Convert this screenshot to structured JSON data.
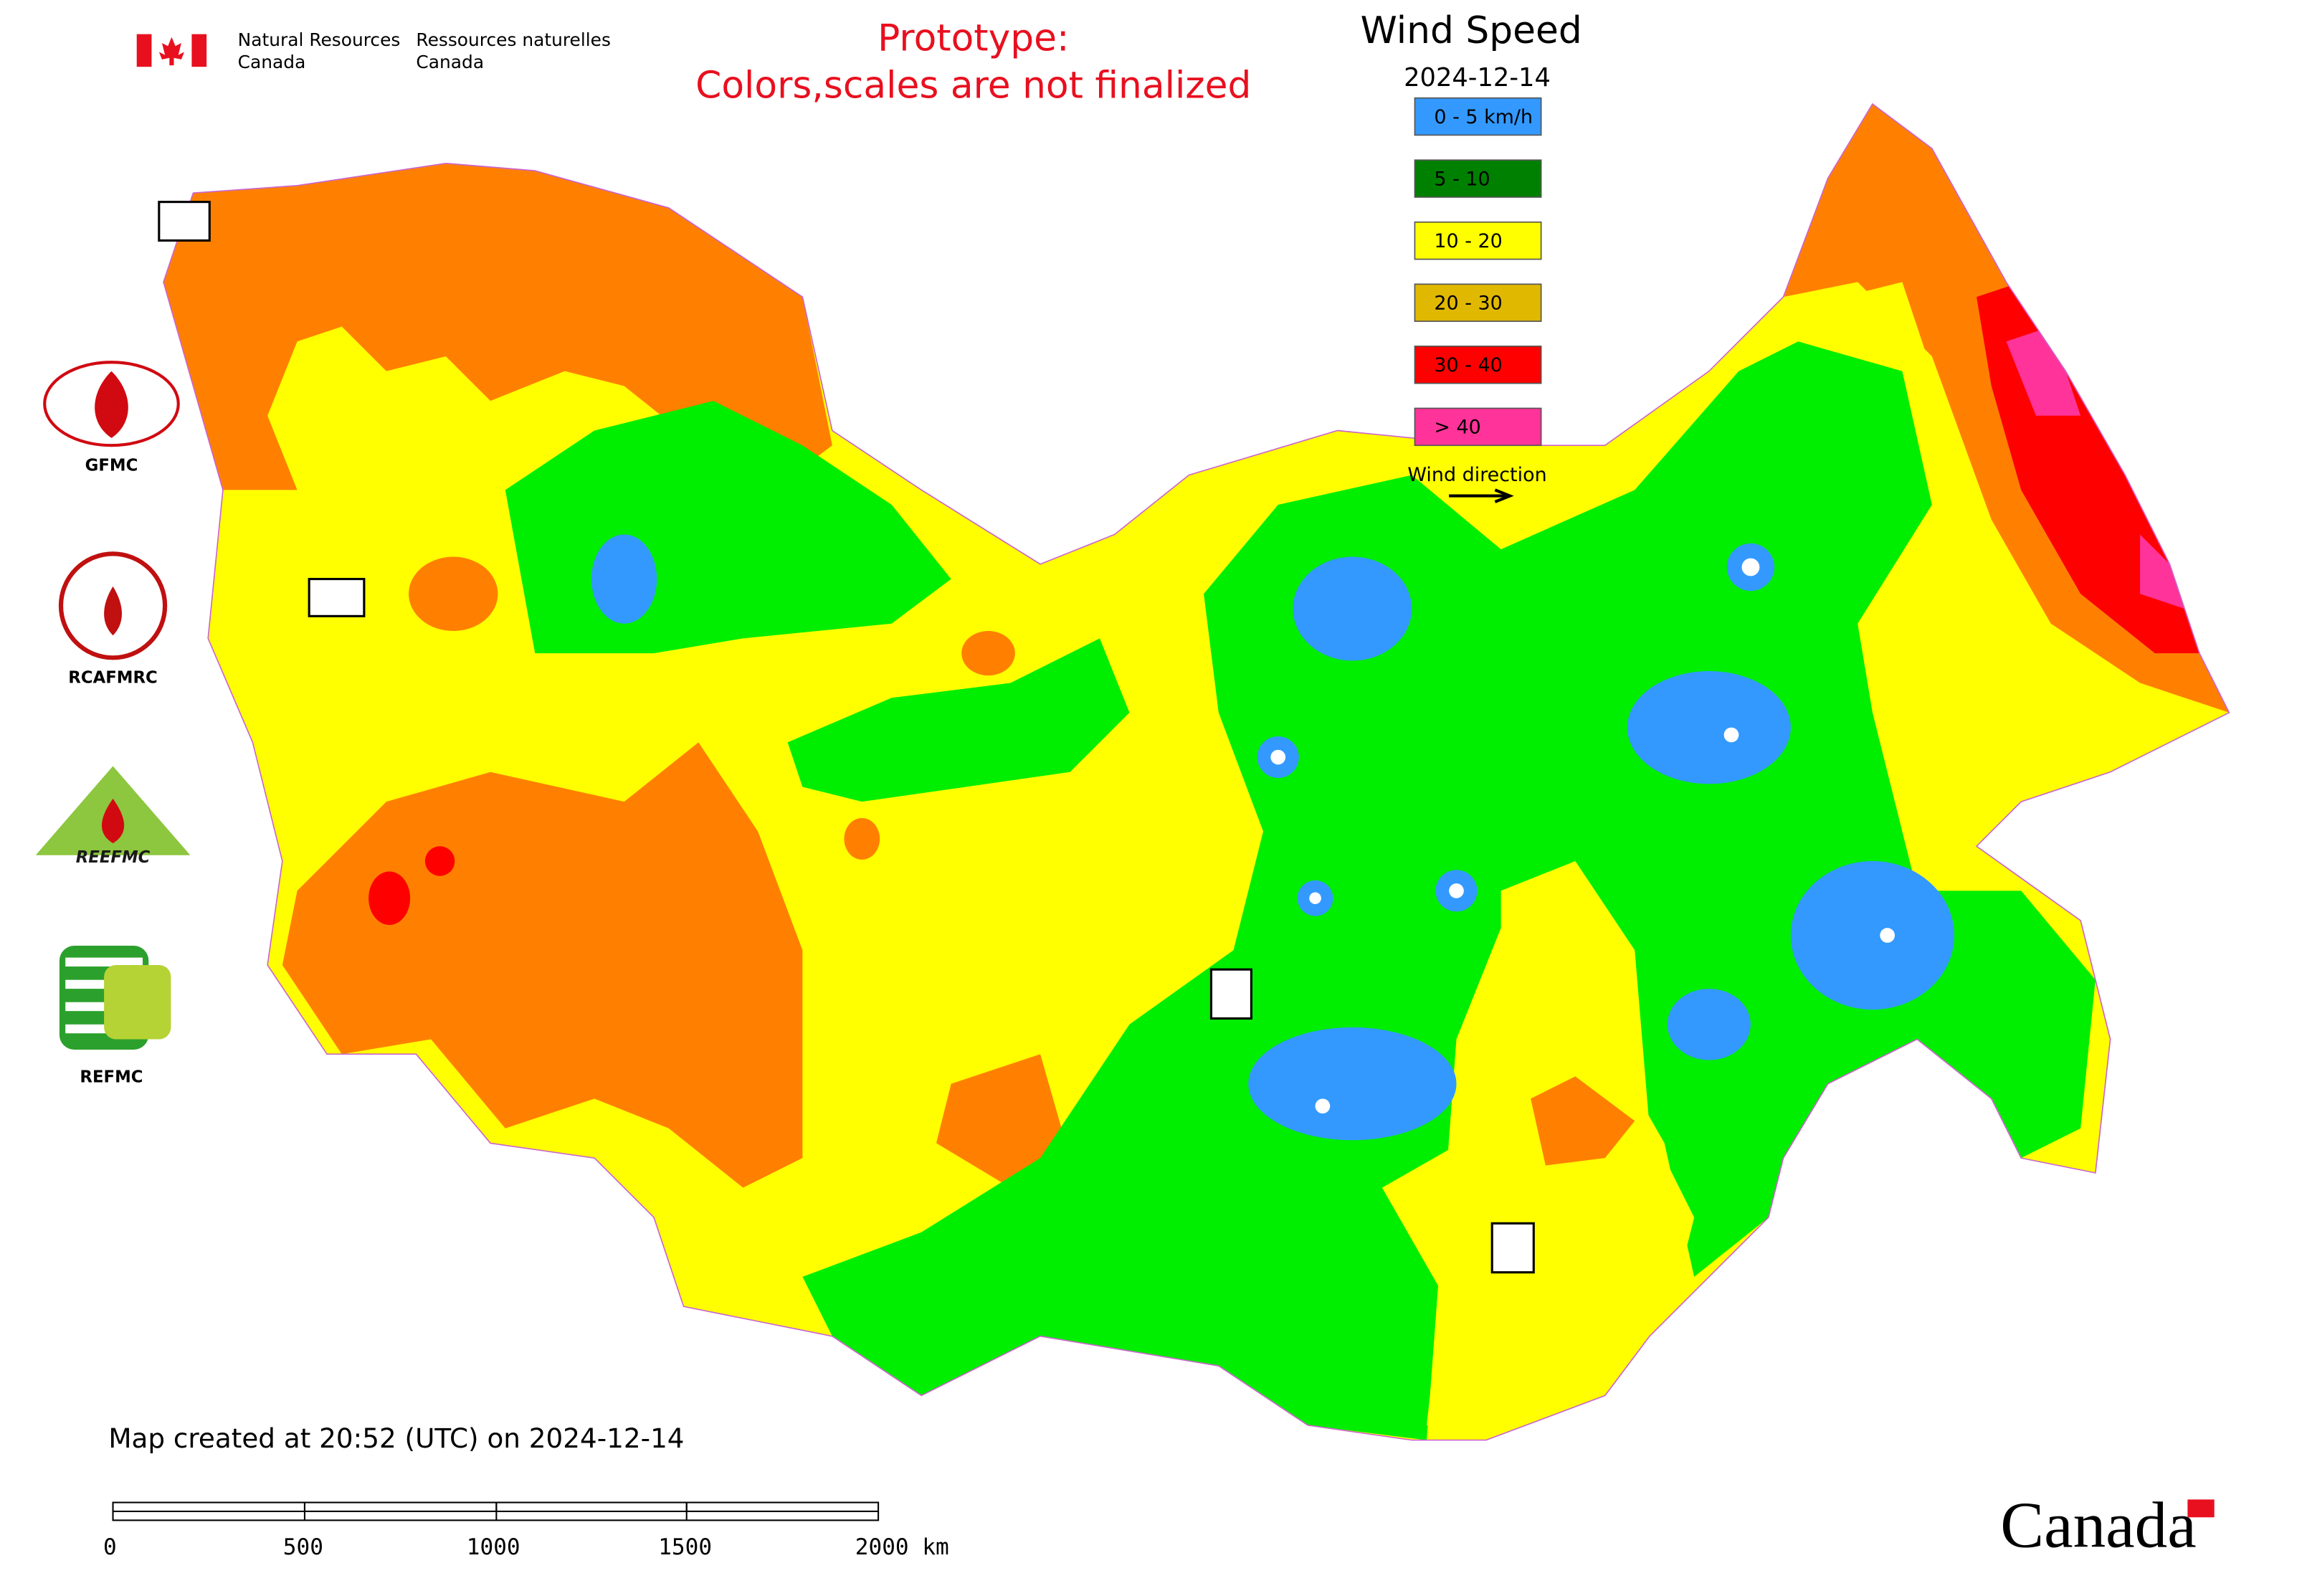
{
  "header": {
    "department_en": [
      "Natural Resources",
      "Canada"
    ],
    "department_fr": [
      "Ressources naturelles",
      "Canada"
    ]
  },
  "notice": [
    "Prototype:",
    "Colors,scales are not finalized"
  ],
  "legend": {
    "title": "Wind Speed",
    "date": "2024-12-14",
    "items": [
      {
        "label": "0 - 5 km/h",
        "color": "#3399ff"
      },
      {
        "label": "5 - 10",
        "color": "#008000"
      },
      {
        "label": "10 - 20",
        "color": "#ffff00"
      },
      {
        "label": "20 - 30",
        "color": "#e0b800"
      },
      {
        "label": "30 - 40",
        "color": "#ff0000"
      },
      {
        "label": "> 40",
        "color": "#ff3399"
      }
    ],
    "wind_direction": "Wind direction"
  },
  "logos": [
    "GFMC",
    "RCAFMRC",
    "REEFMC",
    "REFMC"
  ],
  "footer": {
    "created": "Map created at 20:52 (UTC) on 2024-12-14",
    "scale_labels": [
      "0",
      "500",
      "1000",
      "1500",
      "2000 km"
    ],
    "wordmark": "Canada"
  }
}
